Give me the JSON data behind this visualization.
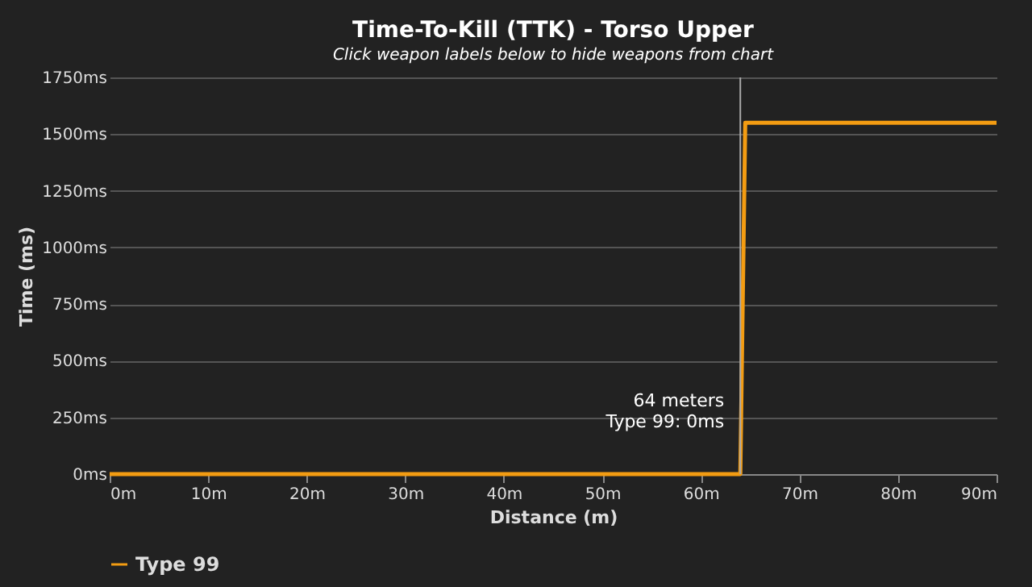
{
  "chart_data": {
    "type": "line",
    "title": "Time-To-Kill (TTK) - Torso Upper",
    "subtitle": "Click weapon labels below to hide weapons from chart",
    "xlabel": "Distance (m)",
    "ylabel": "Time (ms)",
    "series": [
      {
        "name": "Type 99",
        "color": "#f39c12",
        "x": [
          0,
          64,
          64.5,
          90
        ],
        "values": [
          0,
          0,
          1550,
          1550
        ]
      }
    ],
    "xlim": [
      0,
      90
    ],
    "ylim": [
      0,
      1750
    ],
    "xticks": [
      {
        "value": 0,
        "label": "0m"
      },
      {
        "value": 10,
        "label": "10m"
      },
      {
        "value": 20,
        "label": "20m"
      },
      {
        "value": 30,
        "label": "30m"
      },
      {
        "value": 40,
        "label": "40m"
      },
      {
        "value": 50,
        "label": "50m"
      },
      {
        "value": 60,
        "label": "60m"
      },
      {
        "value": 70,
        "label": "70m"
      },
      {
        "value": 80,
        "label": "80m"
      },
      {
        "value": 90,
        "label": "90m"
      }
    ],
    "yticks": [
      {
        "value": 0,
        "label": "0ms"
      },
      {
        "value": 250,
        "label": "250ms"
      },
      {
        "value": 500,
        "label": "500ms"
      },
      {
        "value": 750,
        "label": "750ms"
      },
      {
        "value": 1000,
        "label": "1000ms"
      },
      {
        "value": 1250,
        "label": "1250ms"
      },
      {
        "value": 1500,
        "label": "1500ms"
      },
      {
        "value": 1750,
        "label": "1750ms"
      }
    ],
    "ref_lines": [
      {
        "axis": "x",
        "value": 64,
        "color": "#aaaaaa"
      }
    ],
    "annotations": [
      {
        "text": "64 meters\nType 99: 0ms",
        "x": 64,
        "y": 0
      }
    ],
    "grid": "y",
    "legend": "bottom",
    "marker": "none",
    "line_style": "solid"
  }
}
